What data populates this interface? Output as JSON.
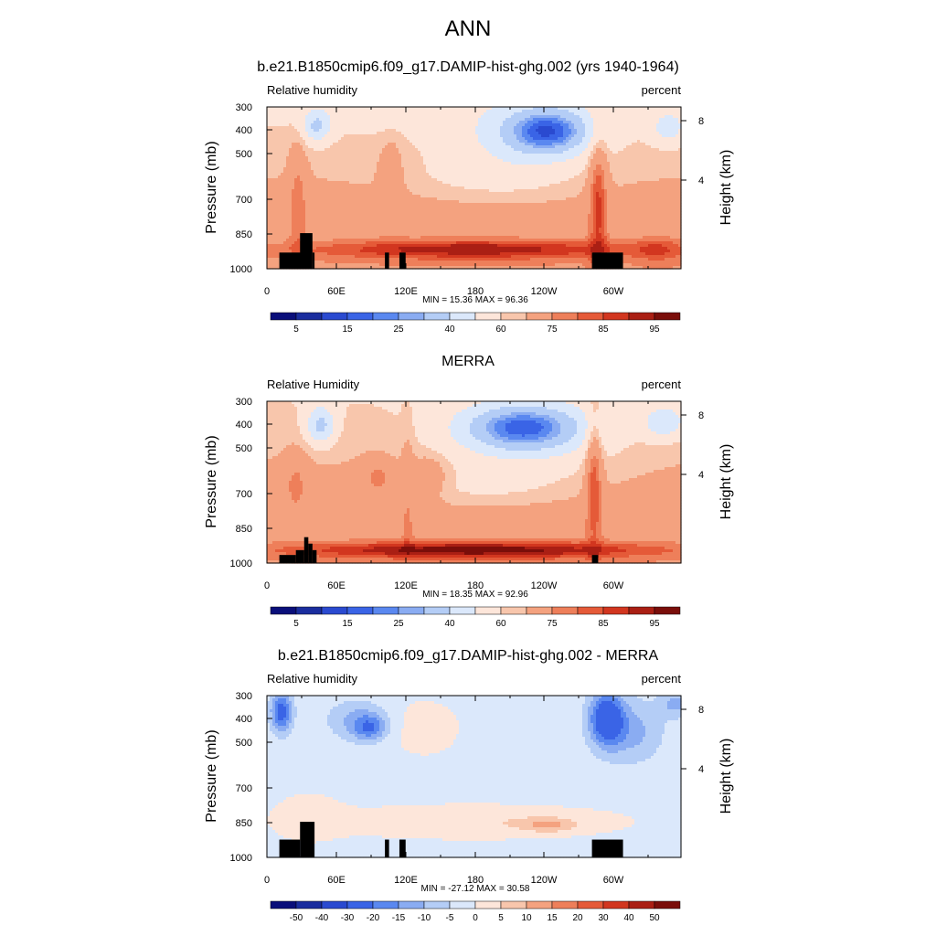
{
  "page_title": "ANN",
  "colors": {
    "abs_scale": [
      "#0a0f7a",
      "#1a2d9e",
      "#2a4ad0",
      "#3a64e6",
      "#5a88f0",
      "#8aacf2",
      "#b4cdf6",
      "#dbe8fb",
      "#fde6da",
      "#f8c6ac",
      "#f4a27f",
      "#ee7f5a",
      "#e55a38",
      "#d2361f",
      "#aa1f14",
      "#7a0e0a"
    ],
    "diff_scale": [
      "#0a0f7a",
      "#1a2d9e",
      "#2a4ad0",
      "#3a64e6",
      "#5a88f0",
      "#8aacf2",
      "#b4cdf6",
      "#dbe8fb",
      "#fde6da",
      "#f8c6ac",
      "#f4a27f",
      "#ee7f5a",
      "#e55a38",
      "#d2361f",
      "#aa1f14",
      "#7a0e0a"
    ],
    "topography": "#000000"
  },
  "chart_data": [
    {
      "type": "heatmap",
      "title": "b.e21.B1850cmip6.f09_g17.DAMIP-hist-ghg.002 (yrs 1940-1964)",
      "left_label": "Relative humidity",
      "right_label": "percent",
      "ylabel": "Pressure (mb)",
      "y2label": "Height (km)",
      "x_ticks": [
        "0",
        "60E",
        "120E",
        "180",
        "120W",
        "60W"
      ],
      "y_ticks": [
        "300",
        "400",
        "500",
        "700",
        "850",
        "1000"
      ],
      "y2_ticks": [
        "8",
        "4"
      ],
      "stats": "MIN =  15.36  MAX =  96.36",
      "colorbar_labels": [
        "5",
        "15",
        "25",
        "40",
        "60",
        "75",
        "85",
        "95"
      ],
      "min": 15.36,
      "max": 96.36
    },
    {
      "type": "heatmap",
      "title": "MERRA",
      "left_label": "Relative Humidity",
      "right_label": "percent",
      "ylabel": "Pressure (mb)",
      "y2label": "Height (km)",
      "x_ticks": [
        "0",
        "60E",
        "120E",
        "180",
        "120W",
        "60W"
      ],
      "y_ticks": [
        "300",
        "400",
        "500",
        "700",
        "850",
        "1000"
      ],
      "y2_ticks": [
        "8",
        "4"
      ],
      "stats": "MIN =  18.35  MAX =  92.96",
      "colorbar_labels": [
        "5",
        "15",
        "25",
        "40",
        "60",
        "75",
        "85",
        "95"
      ],
      "min": 18.35,
      "max": 92.96
    },
    {
      "type": "heatmap",
      "title": "b.e21.B1850cmip6.f09_g17.DAMIP-hist-ghg.002 - MERRA",
      "left_label": "Relative humidity",
      "right_label": "percent",
      "ylabel": "Pressure (mb)",
      "y2label": "Height (km)",
      "x_ticks": [
        "0",
        "60E",
        "120E",
        "180",
        "120W",
        "60W"
      ],
      "y_ticks": [
        "300",
        "400",
        "500",
        "700",
        "850",
        "1000"
      ],
      "y2_ticks": [
        "8",
        "4"
      ],
      "stats": "MIN = -27.12  MAX =  30.58",
      "colorbar_labels": [
        "-50",
        "-40",
        "-30",
        "-20",
        "-15",
        "-10",
        "-5",
        "0",
        "5",
        "10",
        "15",
        "20",
        "30",
        "40",
        "50"
      ],
      "min": -27.12,
      "max": 30.58
    }
  ]
}
